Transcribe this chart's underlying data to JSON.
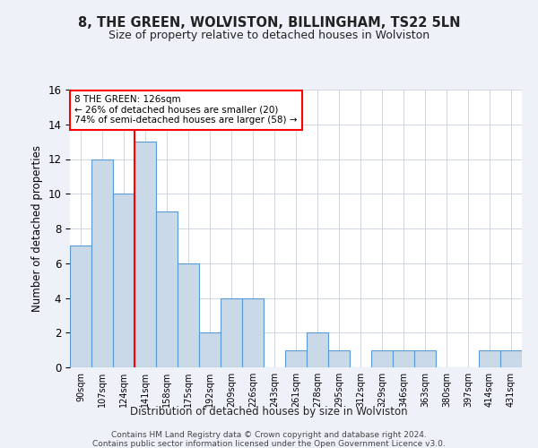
{
  "title": "8, THE GREEN, WOLVISTON, BILLINGHAM, TS22 5LN",
  "subtitle": "Size of property relative to detached houses in Wolviston",
  "xlabel": "Distribution of detached houses by size in Wolviston",
  "ylabel": "Number of detached properties",
  "categories": [
    "90sqm",
    "107sqm",
    "124sqm",
    "141sqm",
    "158sqm",
    "175sqm",
    "192sqm",
    "209sqm",
    "226sqm",
    "243sqm",
    "261sqm",
    "278sqm",
    "295sqm",
    "312sqm",
    "329sqm",
    "346sqm",
    "363sqm",
    "380sqm",
    "397sqm",
    "414sqm",
    "431sqm"
  ],
  "values": [
    7,
    12,
    10,
    13,
    9,
    6,
    2,
    4,
    4,
    0,
    1,
    2,
    1,
    0,
    1,
    1,
    1,
    0,
    0,
    1,
    1
  ],
  "bar_color": "#c9d9e8",
  "bar_edge_color": "#5b9bd5",
  "ylim": [
    0,
    16
  ],
  "yticks": [
    0,
    2,
    4,
    6,
    8,
    10,
    12,
    14,
    16
  ],
  "red_line_x": 2.5,
  "annotation_title": "8 THE GREEN: 126sqm",
  "annotation_line1": "← 26% of detached houses are smaller (20)",
  "annotation_line2": "74% of semi-detached houses are larger (58) →",
  "footer1": "Contains HM Land Registry data © Crown copyright and database right 2024.",
  "footer2": "Contains public sector information licensed under the Open Government Licence v3.0.",
  "background_color": "#eef2f8",
  "plot_bg_color": "#ffffff"
}
